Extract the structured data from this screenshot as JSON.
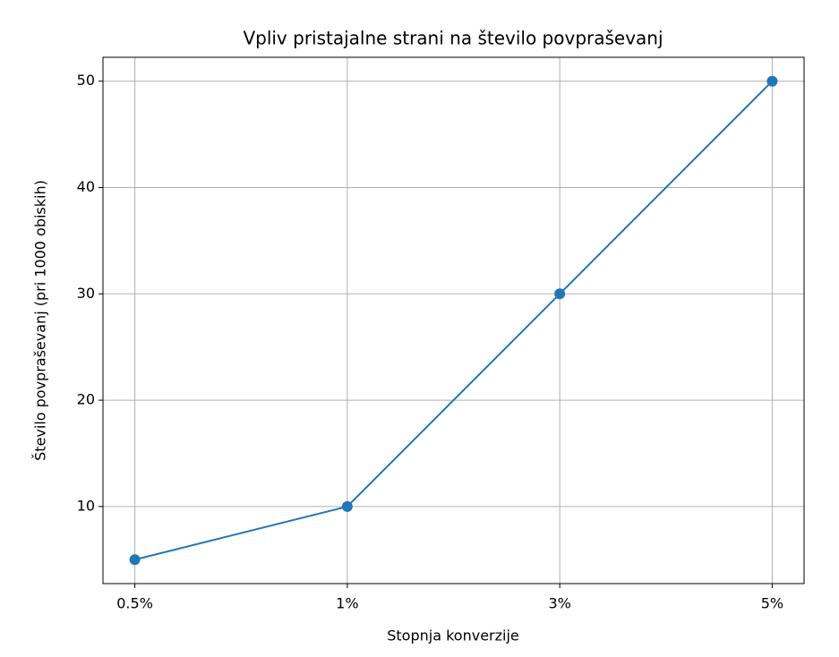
{
  "chart_data": {
    "type": "line",
    "title": "Vpliv pristajalne strani na število povpraševanj",
    "x_label": "Stopnja konverzije",
    "y_label": "Število povpraševanj (pri 1000 obiskih)",
    "categories": [
      "0.5%",
      "1%",
      "3%",
      "5%"
    ],
    "values": [
      5,
      10,
      30,
      50
    ],
    "color": "#1f77b4",
    "ylim": [
      2.75,
      52.25
    ],
    "yticks": [
      10,
      20,
      30,
      40,
      50
    ],
    "grid": true,
    "markers": true
  }
}
